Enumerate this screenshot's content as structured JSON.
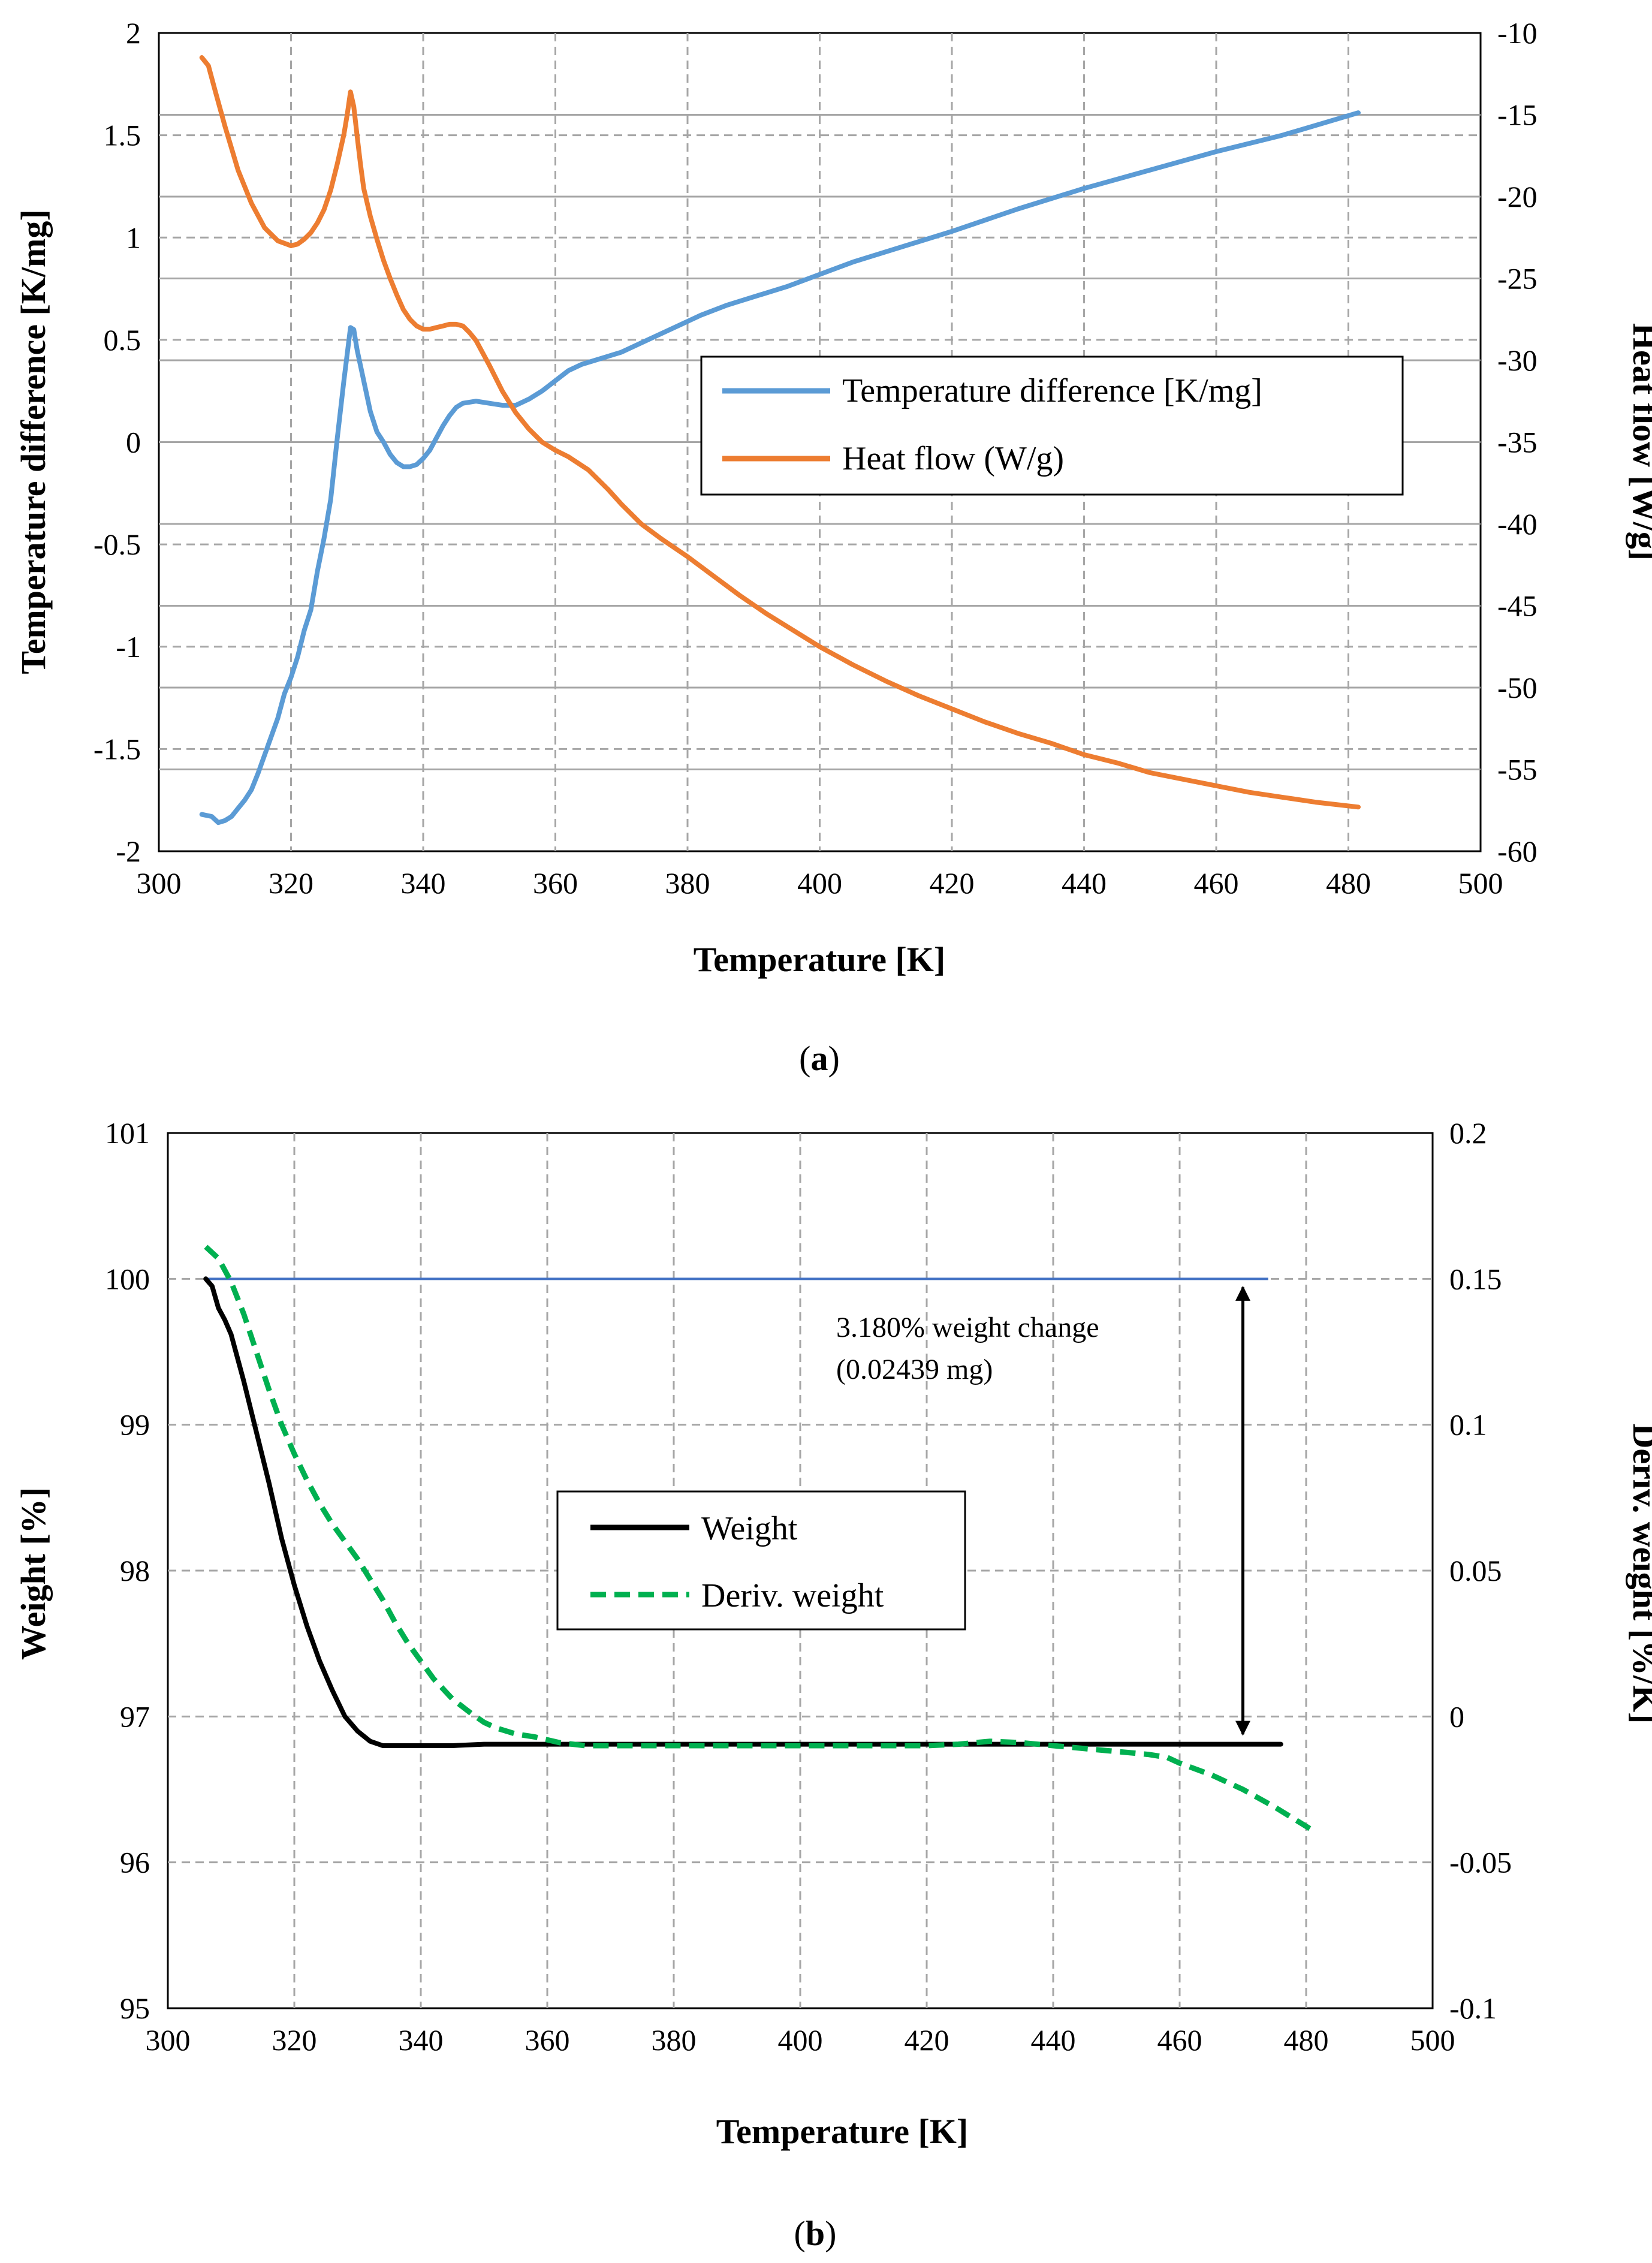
{
  "colors": {
    "blue": "#5b9bd5",
    "orange": "#ed7d31",
    "black": "#000000",
    "green": "#00b050",
    "hline": "#4472c4",
    "grid": "#a6a6a6"
  },
  "chart_data": [
    {
      "id": "a",
      "type": "line",
      "caption_open": "(",
      "caption_letter": "a",
      "caption_close": ")",
      "xlabel": "Temperature [K]",
      "ylabel": "Temperature difference [K/mg]",
      "y2label": "Heat flow [W/g]",
      "xlim": [
        300,
        500
      ],
      "ylim": [
        -2,
        2
      ],
      "y2lim": [
        -60,
        -10
      ],
      "xticks": [
        "300",
        "320",
        "340",
        "360",
        "380",
        "400",
        "420",
        "440",
        "460",
        "480",
        "500"
      ],
      "yticks": [
        "-2",
        "-1.5",
        "-1",
        "-0.5",
        "0",
        "0.5",
        "1",
        "1.5",
        "2"
      ],
      "y2ticks": [
        "-60",
        "-55",
        "-50",
        "-45",
        "-40",
        "-35",
        "-30",
        "-25",
        "-20",
        "-15",
        "-10"
      ],
      "legend": [
        "Temperature difference [K/mg]",
        "Heat flow (W/g)"
      ],
      "series": [
        {
          "name": "Temperature difference [K/mg]",
          "axis": "left",
          "x": [
            306.5,
            308,
            309,
            310,
            311,
            312,
            313,
            314,
            315,
            316,
            317,
            318,
            319,
            320,
            321,
            322,
            323,
            324,
            325,
            326,
            327,
            328,
            329,
            329.5,
            330,
            331,
            332,
            333,
            334,
            335,
            336,
            337,
            338,
            339,
            340,
            341,
            342,
            343,
            344,
            345,
            346,
            348,
            350,
            352,
            354,
            356,
            358,
            360,
            362,
            364,
            366,
            370,
            374,
            378,
            382,
            386,
            390,
            395,
            400,
            405,
            410,
            420,
            430,
            440,
            450,
            460,
            470,
            481.5
          ],
          "y": [
            -1.82,
            -1.83,
            -1.86,
            -1.85,
            -1.83,
            -1.79,
            -1.75,
            -1.7,
            -1.62,
            -1.53,
            -1.44,
            -1.35,
            -1.23,
            -1.15,
            -1.05,
            -0.92,
            -0.82,
            -0.63,
            -0.47,
            -0.28,
            0.02,
            0.3,
            0.56,
            0.55,
            0.45,
            0.3,
            0.15,
            0.05,
            0.0,
            -0.06,
            -0.1,
            -0.12,
            -0.12,
            -0.11,
            -0.08,
            -0.04,
            0.02,
            0.08,
            0.13,
            0.17,
            0.19,
            0.2,
            0.19,
            0.18,
            0.18,
            0.21,
            0.25,
            0.3,
            0.35,
            0.38,
            0.4,
            0.44,
            0.5,
            0.56,
            0.62,
            0.67,
            0.71,
            0.76,
            0.82,
            0.88,
            0.93,
            1.03,
            1.14,
            1.24,
            1.33,
            1.42,
            1.5,
            1.61
          ]
        },
        {
          "name": "Heat flow (W/g)",
          "axis": "right",
          "x": [
            306.5,
            307.5,
            308.5,
            310,
            312,
            314,
            316,
            318,
            320,
            321,
            322,
            323,
            324,
            325,
            326,
            327,
            328,
            328.5,
            329,
            329.5,
            330,
            330.5,
            331,
            332,
            333,
            334,
            335,
            336,
            337,
            338,
            339,
            340,
            341,
            342,
            343,
            344,
            345,
            346,
            347,
            348,
            350,
            352,
            354,
            356,
            358,
            360,
            362,
            365,
            368,
            370,
            373,
            376,
            380,
            384,
            388,
            392,
            396,
            400,
            405,
            410,
            415,
            420,
            425,
            430,
            435,
            440,
            445,
            450,
            455,
            460,
            465,
            470,
            475,
            481.5
          ],
          "y": [
            -11.5,
            -12,
            -13.5,
            -15.7,
            -18.4,
            -20.4,
            -21.9,
            -22.7,
            -23.0,
            -22.9,
            -22.6,
            -22.2,
            -21.6,
            -20.8,
            -19.6,
            -18.0,
            -16.2,
            -15.0,
            -13.6,
            -14.5,
            -16.3,
            -18.0,
            -19.5,
            -21.2,
            -22.6,
            -23.9,
            -25.0,
            -26.0,
            -26.9,
            -27.5,
            -27.9,
            -28.1,
            -28.1,
            -28.0,
            -27.9,
            -27.8,
            -27.8,
            -27.9,
            -28.3,
            -28.8,
            -30.3,
            -31.9,
            -33.2,
            -34.2,
            -35.0,
            -35.5,
            -35.9,
            -36.7,
            -37.9,
            -38.8,
            -40.0,
            -40.9,
            -42.0,
            -43.2,
            -44.4,
            -45.5,
            -46.5,
            -47.5,
            -48.6,
            -49.6,
            -50.5,
            -51.3,
            -52.1,
            -52.8,
            -53.4,
            -54.1,
            -54.6,
            -55.2,
            -55.6,
            -56.0,
            -56.4,
            -56.7,
            -57.0,
            -57.3
          ]
        }
      ]
    },
    {
      "id": "b",
      "type": "line",
      "caption_open": "(",
      "caption_letter": "b",
      "caption_close": ")",
      "xlabel": "Temperature [K]",
      "ylabel": "Weight [%]",
      "y2label": "Deriv. weight [%/K]",
      "xlim": [
        300,
        500
      ],
      "ylim": [
        95,
        101
      ],
      "y2lim": [
        -0.1,
        0.2
      ],
      "xticks": [
        "300",
        "320",
        "340",
        "360",
        "380",
        "400",
        "420",
        "440",
        "460",
        "480",
        "500"
      ],
      "yticks": [
        "95",
        "96",
        "97",
        "98",
        "99",
        "100",
        "101"
      ],
      "y2ticks": [
        "-0.1",
        "-0.05",
        "0",
        "0.05",
        "0.1",
        "0.15",
        "0.2"
      ],
      "legend": [
        "Weight",
        "Deriv. weight"
      ],
      "annotation": {
        "line1": "3.180% weight change",
        "line2": "(0.02439 mg)",
        "arrow_x": 470,
        "arrow_top": 100,
        "arrow_bottom": 96.82
      },
      "reference_line": {
        "y": 100,
        "x_start": 306,
        "x_end": 474
      },
      "series": [
        {
          "name": "Weight",
          "axis": "left",
          "x": [
            306,
            307,
            308,
            309,
            310,
            312,
            314,
            316,
            318,
            320,
            322,
            324,
            326,
            328,
            330,
            332,
            334,
            336,
            340,
            345,
            350,
            360,
            380,
            400,
            420,
            440,
            460,
            476
          ],
          "y": [
            100.0,
            99.95,
            99.8,
            99.72,
            99.62,
            99.3,
            98.95,
            98.6,
            98.22,
            97.9,
            97.62,
            97.38,
            97.18,
            97.0,
            96.9,
            96.83,
            96.8,
            96.8,
            96.8,
            96.8,
            96.81,
            96.81,
            96.81,
            96.81,
            96.81,
            96.81,
            96.81,
            96.81
          ]
        },
        {
          "name": "Deriv. weight",
          "axis": "right",
          "x": [
            306,
            308,
            310,
            312,
            314,
            316,
            318,
            320,
            322,
            324,
            326,
            328,
            330,
            332,
            334,
            336,
            338,
            340,
            342,
            345,
            348,
            350,
            352,
            355,
            358,
            362,
            366,
            370,
            380,
            390,
            400,
            410,
            420,
            425,
            430,
            435,
            440,
            445,
            450,
            455,
            458,
            460,
            465,
            470,
            475,
            481
          ],
          "y": [
            0.161,
            0.157,
            0.149,
            0.138,
            0.125,
            0.112,
            0.1,
            0.09,
            0.081,
            0.073,
            0.066,
            0.06,
            0.054,
            0.047,
            0.04,
            0.032,
            0.025,
            0.019,
            0.013,
            0.006,
            0.001,
            -0.002,
            -0.004,
            -0.006,
            -0.007,
            -0.009,
            -0.01,
            -0.01,
            -0.01,
            -0.01,
            -0.01,
            -0.01,
            -0.01,
            -0.0095,
            -0.0085,
            -0.009,
            -0.01,
            -0.011,
            -0.012,
            -0.013,
            -0.014,
            -0.016,
            -0.02,
            -0.025,
            -0.031,
            -0.039
          ]
        }
      ]
    }
  ]
}
